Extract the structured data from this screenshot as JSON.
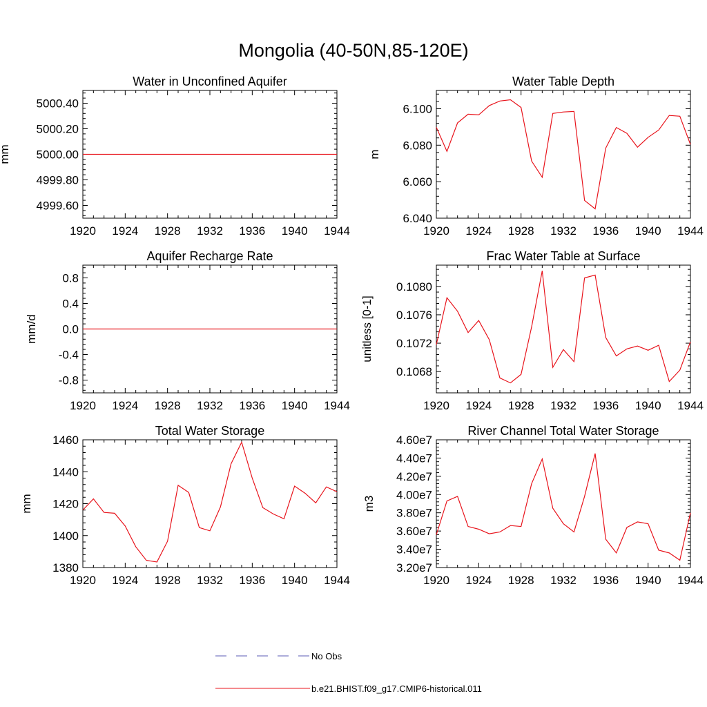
{
  "figure": {
    "title": "Mongolia (40-50N,85-120E)"
  },
  "colors": {
    "model_line": "#e8141c",
    "obs_line": "#5a5ab4",
    "axis": "#000000"
  },
  "legend": {
    "items": [
      {
        "label": "No Obs",
        "style": "dashed",
        "color": "#5a5ab4"
      },
      {
        "label": "b.e21.BHIST.f09_g17.CMIP6-historical.011",
        "style": "solid",
        "color": "#e8141c"
      }
    ]
  },
  "chart_data": [
    {
      "type": "line",
      "title": "Water in Unconfined Aquifer",
      "ylabel": "mm",
      "xlim": [
        1920,
        1944
      ],
      "ylim": [
        4999.5,
        5000.5
      ],
      "xticks": [
        1920,
        1924,
        1928,
        1932,
        1936,
        1940,
        1944
      ],
      "yticks": [
        4999.6,
        4999.8,
        5000.0,
        5000.2,
        5000.4
      ],
      "ytick_labels": [
        "4999.60",
        "4999.80",
        "5000.00",
        "5000.20",
        "5000.40"
      ],
      "x": [
        1920,
        1944
      ],
      "series": [
        {
          "values": [
            5000.0,
            5000.0
          ]
        }
      ]
    },
    {
      "type": "line",
      "title": "Water Table Depth",
      "ylabel": "m",
      "xlim": [
        1920,
        1944
      ],
      "ylim": [
        6.04,
        6.11
      ],
      "xticks": [
        1920,
        1924,
        1928,
        1932,
        1936,
        1940,
        1944
      ],
      "yticks": [
        6.04,
        6.06,
        6.08,
        6.1
      ],
      "ytick_labels": [
        "6.040",
        "6.060",
        "6.080",
        "6.100"
      ],
      "x": [
        1920,
        1921,
        1922,
        1923,
        1924,
        1925,
        1926,
        1927,
        1928,
        1929,
        1930,
        1931,
        1932,
        1933,
        1934,
        1935,
        1936,
        1937,
        1938,
        1939,
        1940,
        1941,
        1942,
        1943,
        1944
      ],
      "series": [
        {
          "values": [
            6.0898,
            6.0766,
            6.0922,
            6.097,
            6.0966,
            6.1017,
            6.1042,
            6.1049,
            6.1007,
            6.0713,
            6.0624,
            6.0974,
            6.0982,
            6.0985,
            6.0497,
            6.0451,
            6.0784,
            6.0897,
            6.0865,
            6.0789,
            6.0843,
            6.0883,
            6.0963,
            6.0959,
            6.0804
          ]
        }
      ]
    },
    {
      "type": "line",
      "title": "Aquifer Recharge Rate",
      "ylabel": "mm/d",
      "xlim": [
        1920,
        1944
      ],
      "ylim": [
        -1.0,
        1.0
      ],
      "xticks": [
        1920,
        1924,
        1928,
        1932,
        1936,
        1940,
        1944
      ],
      "yticks": [
        -0.8,
        -0.4,
        0.0,
        0.4,
        0.8
      ],
      "ytick_labels": [
        "-0.8",
        "-0.4",
        "0.0",
        "0.4",
        "0.8"
      ],
      "x": [
        1920,
        1944
      ],
      "series": [
        {
          "values": [
            0.0,
            0.0
          ]
        }
      ]
    },
    {
      "type": "line",
      "title": "Frac Water Table at Surface",
      "ylabel": "unitless [0-1]",
      "xlim": [
        1920,
        1944
      ],
      "ylim": [
        0.1065,
        0.1083
      ],
      "xticks": [
        1920,
        1924,
        1928,
        1932,
        1936,
        1940,
        1944
      ],
      "yticks": [
        0.1068,
        0.1072,
        0.1076,
        0.108
      ],
      "ytick_labels": [
        "0.1068",
        "0.1072",
        "0.1076",
        "0.1080"
      ],
      "x": [
        1920,
        1921,
        1922,
        1923,
        1924,
        1925,
        1926,
        1927,
        1928,
        1929,
        1930,
        1931,
        1932,
        1933,
        1934,
        1935,
        1936,
        1937,
        1938,
        1939,
        1940,
        1941,
        1942,
        1943,
        1944
      ],
      "series": [
        {
          "values": [
            0.10718,
            0.10784,
            0.10765,
            0.10735,
            0.10752,
            0.10725,
            0.10671,
            0.10664,
            0.10676,
            0.10743,
            0.10822,
            0.10686,
            0.10711,
            0.10694,
            0.10812,
            0.10816,
            0.10728,
            0.10702,
            0.10712,
            0.10716,
            0.1071,
            0.10717,
            0.10666,
            0.10682,
            0.10722
          ]
        }
      ]
    },
    {
      "type": "line",
      "title": "Total Water Storage",
      "ylabel": "mm",
      "xlim": [
        1920,
        1944
      ],
      "ylim": [
        1380,
        1460
      ],
      "xticks": [
        1920,
        1924,
        1928,
        1932,
        1936,
        1940,
        1944
      ],
      "yticks": [
        1380,
        1400,
        1420,
        1440,
        1460
      ],
      "ytick_labels": [
        "1380",
        "1400",
        "1420",
        "1440",
        "1460"
      ],
      "x": [
        1920,
        1921,
        1922,
        1923,
        1924,
        1925,
        1926,
        1927,
        1928,
        1929,
        1930,
        1931,
        1932,
        1933,
        1934,
        1935,
        1936,
        1937,
        1938,
        1939,
        1940,
        1941,
        1942,
        1943,
        1944
      ],
      "series": [
        {
          "values": [
            1416,
            1423,
            1414.5,
            1414,
            1406,
            1393,
            1384.5,
            1383.5,
            1396.5,
            1431.5,
            1427,
            1405,
            1403,
            1418,
            1445,
            1458.5,
            1436,
            1417.5,
            1413.5,
            1410.5,
            1431,
            1426.5,
            1420.5,
            1430.5,
            1427.5
          ]
        }
      ]
    },
    {
      "type": "line",
      "title": "River Channel Total Water Storage",
      "ylabel": "m3",
      "xlim": [
        1920,
        1944
      ],
      "ylim": [
        32000000,
        46000000
      ],
      "xticks": [
        1920,
        1924,
        1928,
        1932,
        1936,
        1940,
        1944
      ],
      "yticks": [
        32000000,
        34000000,
        36000000,
        38000000,
        40000000,
        42000000,
        44000000,
        46000000
      ],
      "ytick_labels": [
        "3.20e7",
        "3.40e7",
        "3.60e7",
        "3.80e7",
        "4.00e7",
        "4.20e7",
        "4.40e7",
        "4.60e7"
      ],
      "x": [
        1920,
        1921,
        1922,
        1923,
        1924,
        1925,
        1926,
        1927,
        1928,
        1929,
        1930,
        1931,
        1932,
        1933,
        1934,
        1935,
        1936,
        1937,
        1938,
        1939,
        1940,
        1941,
        1942,
        1943,
        1944
      ],
      "series": [
        {
          "values": [
            35600000,
            39300000,
            39800000,
            36500000,
            36200000,
            35700000,
            35900000,
            36600000,
            36500000,
            41200000,
            43900000,
            38500000,
            36800000,
            35900000,
            39800000,
            44500000,
            35100000,
            33600000,
            36400000,
            37000000,
            36800000,
            33900000,
            33600000,
            32800000,
            38000000
          ]
        }
      ]
    }
  ]
}
